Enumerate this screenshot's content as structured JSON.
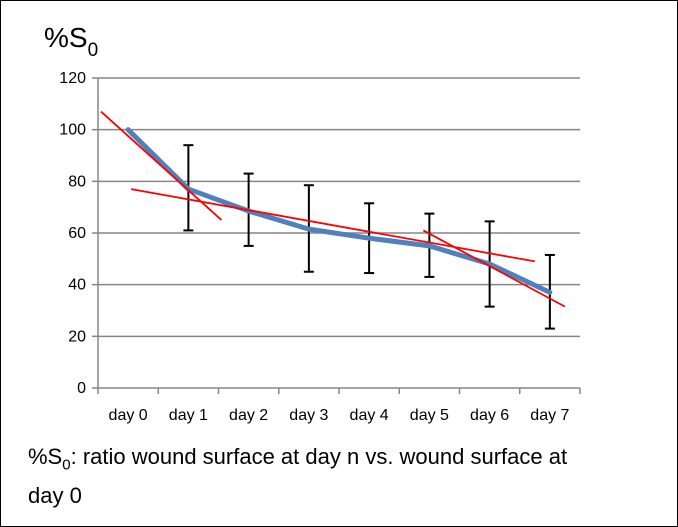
{
  "chart_data": {
    "type": "line",
    "ylabel": {
      "main": "%S",
      "sub": "0"
    },
    "categories": [
      "day 0",
      "day 1",
      "day 2",
      "day 3",
      "day 4",
      "day 5",
      "day 6",
      "day 7"
    ],
    "ylim": [
      0,
      120
    ],
    "yticks": [
      0,
      20,
      40,
      60,
      80,
      100,
      120
    ],
    "grid": true,
    "series": [
      {
        "values": [
          100,
          77,
          68.5,
          61.5,
          58,
          55,
          48,
          37
        ],
        "error_low": [
          100,
          61,
          55,
          45,
          44.5,
          43,
          31.5,
          23
        ],
        "error_high": [
          100,
          94,
          83,
          78.5,
          71.5,
          67.5,
          64.5,
          51.5
        ],
        "color": "#4f81bd"
      }
    ],
    "trend_lines": [
      {
        "x0": -0.45,
        "y0": 107,
        "x1": 1.55,
        "y1": 65,
        "color": "#ff0000"
      },
      {
        "x0": 0.05,
        "y0": 77,
        "x1": 6.75,
        "y1": 49,
        "color": "#ff0000"
      },
      {
        "x0": 4.9,
        "y0": 61,
        "x1": 7.25,
        "y1": 31.5,
        "color": "#ff0000"
      }
    ]
  },
  "caption": {
    "prefix": "%S",
    "sub": "0",
    "text": ": ratio wound surface at day n vs. wound surface at day 0"
  }
}
